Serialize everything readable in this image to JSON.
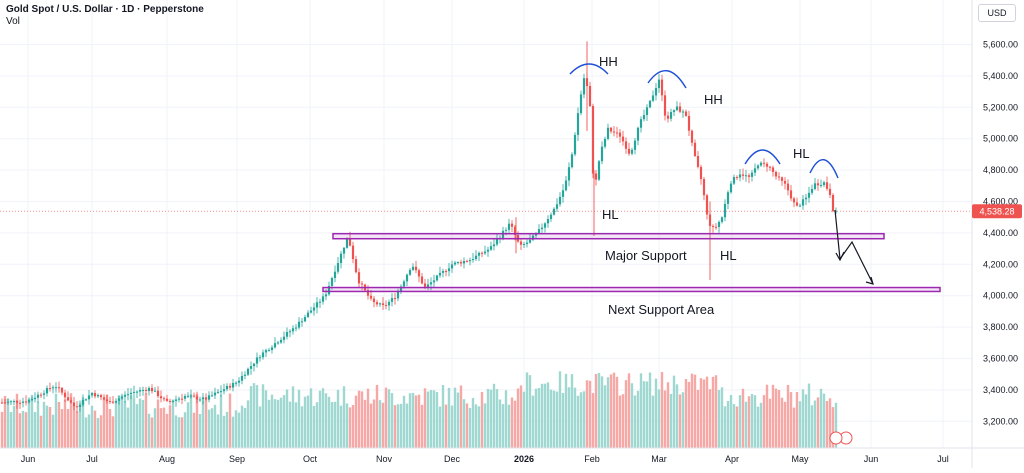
{
  "header": {
    "symbol": "Gold Spot / U.S. Dollar · 1D · Pepperstone",
    "indicator": "Vol",
    "currency": "USD"
  },
  "chart_data": {
    "type": "candlestick",
    "x_ticks": [
      "Jun",
      "Jul",
      "Aug",
      "Sep",
      "Oct",
      "Nov",
      "Dec",
      "2026",
      "Feb",
      "Mar",
      "Apr",
      "May",
      "Jun",
      "Jul"
    ],
    "y_ticks": [
      "5,600.00",
      "5,400.00",
      "5,200.00",
      "5,000.00",
      "4,800.00",
      "4,600.00",
      "4,400.00",
      "4,200.00",
      "4,000.00",
      "3,800.00",
      "3,600.00",
      "3,400.00",
      "3,200.00"
    ],
    "ylim": [
      3150,
      5700
    ],
    "last_price": 4538.28,
    "last_price_label": "4,538.28",
    "colors": {
      "up": "#26a69a",
      "down": "#ef5350",
      "zone": "#9c27b0",
      "arc": "#1e4fd8",
      "price_line": "#ef5350"
    },
    "key_prices": [
      {
        "date": "Jun",
        "close": 3300
      },
      {
        "date": "Aug",
        "close": 3350
      },
      {
        "date": "Sep",
        "close": 3450
      },
      {
        "date": "Oct",
        "close": 3950
      },
      {
        "date": "Oct peak",
        "close": 4380
      },
      {
        "date": "Nov",
        "close": 4000
      },
      {
        "date": "Dec",
        "close": 4300
      },
      {
        "date": "2026",
        "close": 4400
      },
      {
        "date": "Feb peak",
        "close": 5600
      },
      {
        "date": "Mar peak",
        "close": 5420
      },
      {
        "date": "Mar low",
        "close": 4400
      },
      {
        "date": "Apr",
        "close": 4850
      },
      {
        "date": "May",
        "close": 4538
      }
    ],
    "zones": [
      {
        "name": "Major Support",
        "from": 4363,
        "to": 4395
      },
      {
        "name": "Next Support Area",
        "from": 4027,
        "to": 4052
      }
    ],
    "annotations": [
      "HH",
      "HH",
      "HH",
      "HL",
      "HL",
      "HL",
      "HL",
      "Major Support",
      "Next Support Area"
    ]
  }
}
